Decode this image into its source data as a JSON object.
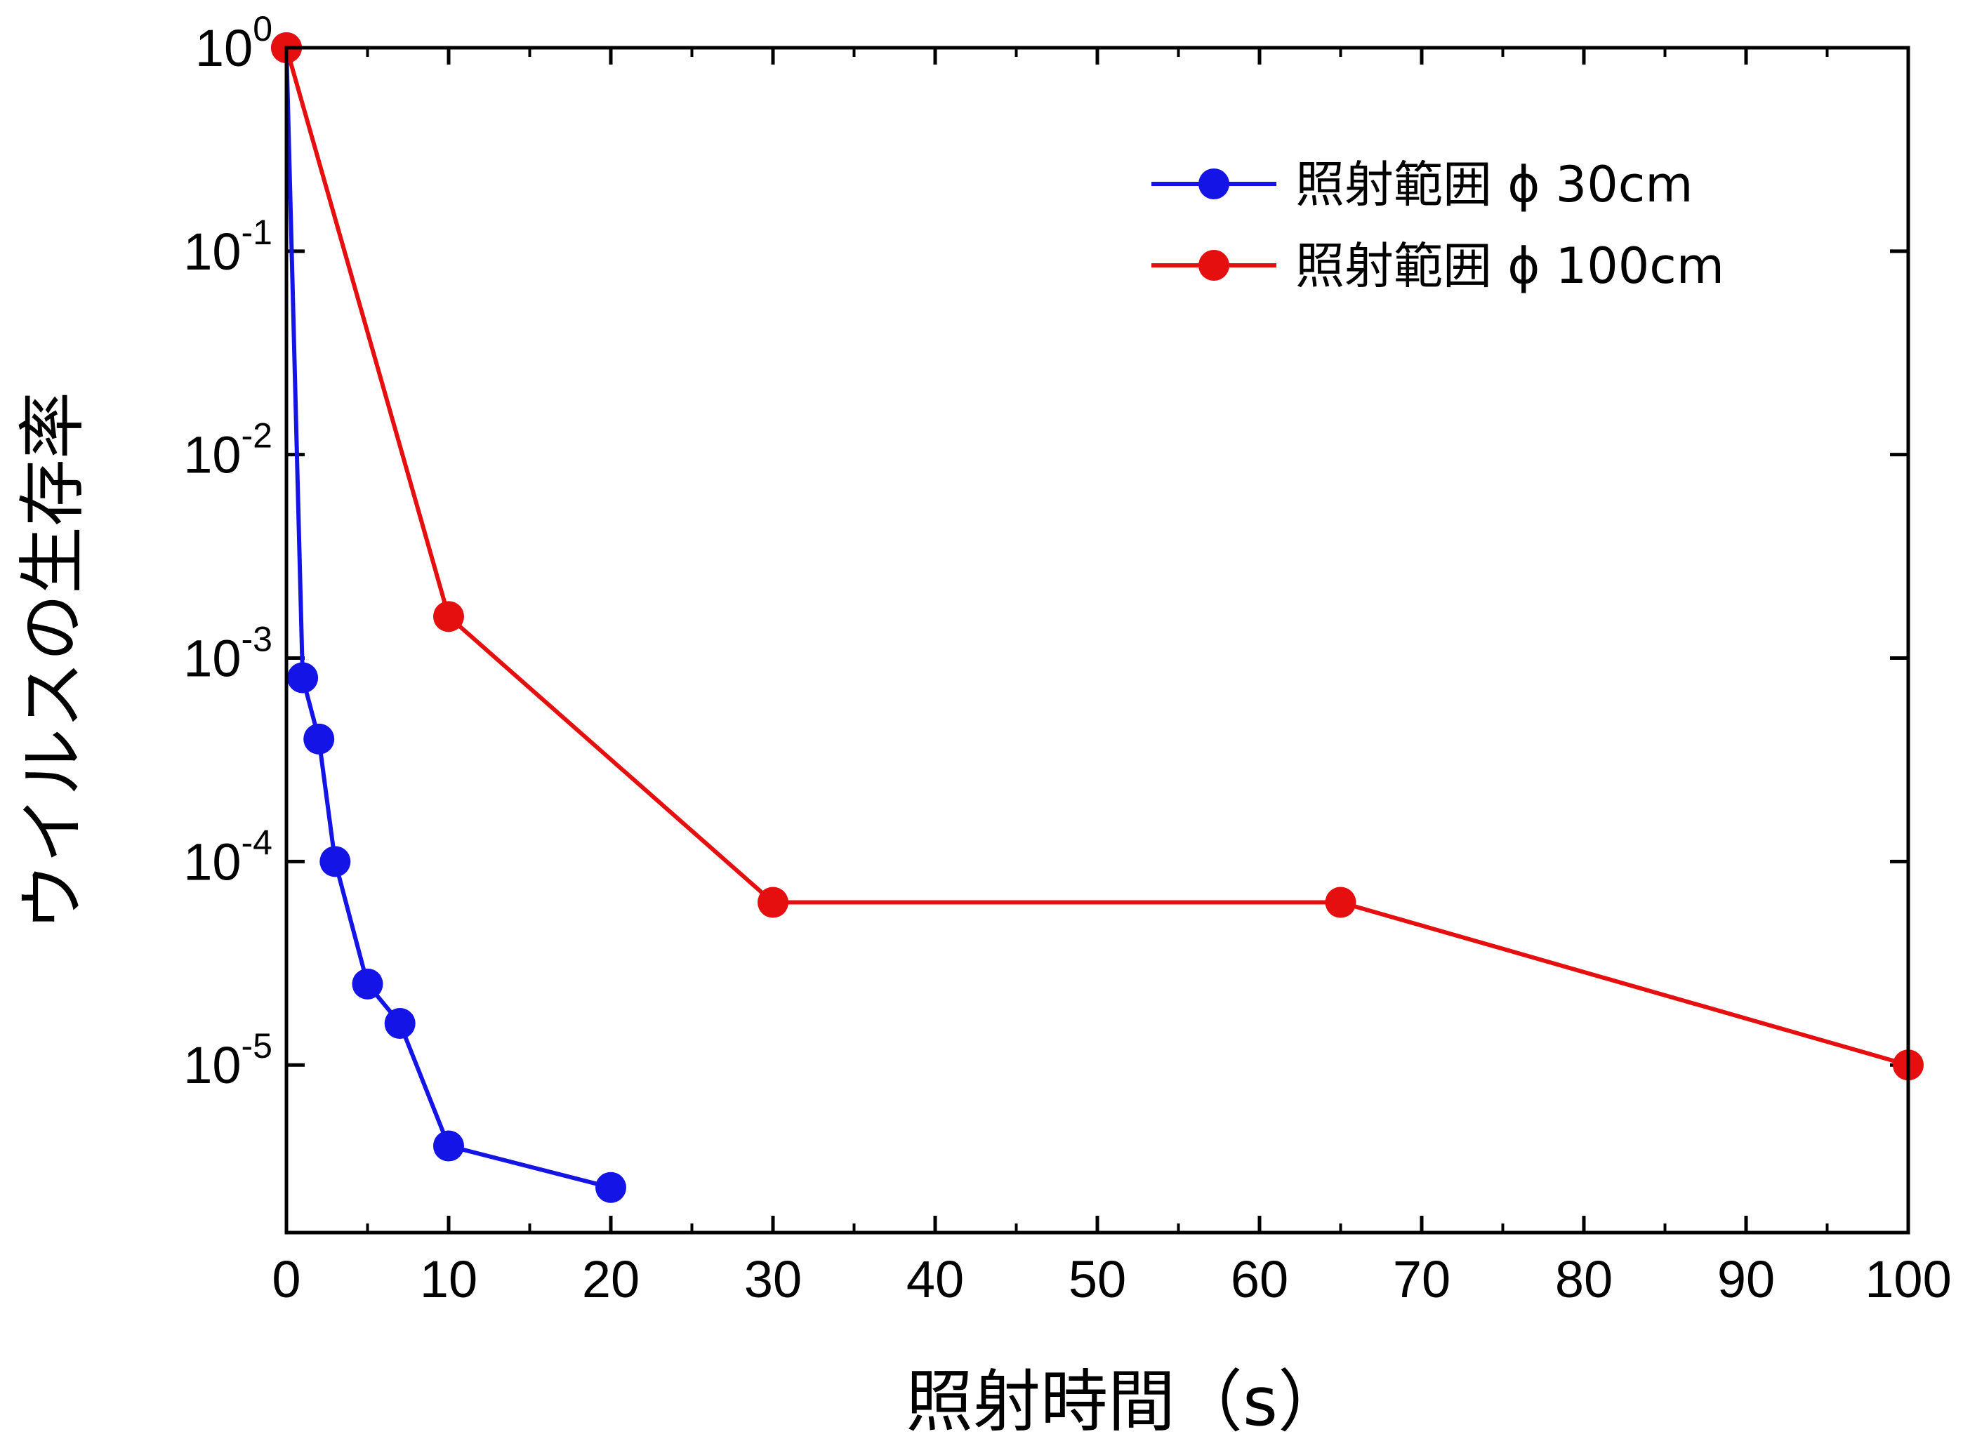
{
  "chart_data": {
    "type": "line",
    "title": "",
    "xlabel": "照射時間（s）",
    "ylabel": "ウイルスの生存率",
    "xlim": [
      0,
      100
    ],
    "ylim": [
      1.5e-06,
      1
    ],
    "yscale": "log",
    "grid": false,
    "legend_position": "top-right",
    "x_ticks": [
      0,
      10,
      20,
      30,
      40,
      50,
      60,
      70,
      80,
      90,
      100
    ],
    "x_tick_labels": [
      "0",
      "10",
      "20",
      "30",
      "40",
      "50",
      "60",
      "70",
      "80",
      "90",
      "100"
    ],
    "y_ticks": [
      {
        "value": 1,
        "base": "10",
        "exp": "0"
      },
      {
        "value": 0.1,
        "base": "10",
        "exp": "-1"
      },
      {
        "value": 0.01,
        "base": "10",
        "exp": "-2"
      },
      {
        "value": 0.001,
        "base": "10",
        "exp": "-3"
      },
      {
        "value": 0.0001,
        "base": "10",
        "exp": "-4"
      },
      {
        "value": 1e-05,
        "base": "10",
        "exp": "-5"
      }
    ],
    "series": [
      {
        "name": "照射範囲 ϕ 30cm",
        "color": "#1414e6",
        "x": [
          0,
          1,
          2,
          3,
          5,
          7,
          10,
          20
        ],
        "y": [
          1,
          0.0008,
          0.0004,
          0.0001,
          2.5e-05,
          1.6e-05,
          4e-06,
          2.5e-06
        ]
      },
      {
        "name": "照射範囲 ϕ 100cm",
        "color": "#e60f0f",
        "x": [
          0,
          10,
          30,
          65,
          100
        ],
        "y": [
          1,
          0.0016,
          6.3e-05,
          6.3e-05,
          1e-05
        ]
      }
    ]
  }
}
